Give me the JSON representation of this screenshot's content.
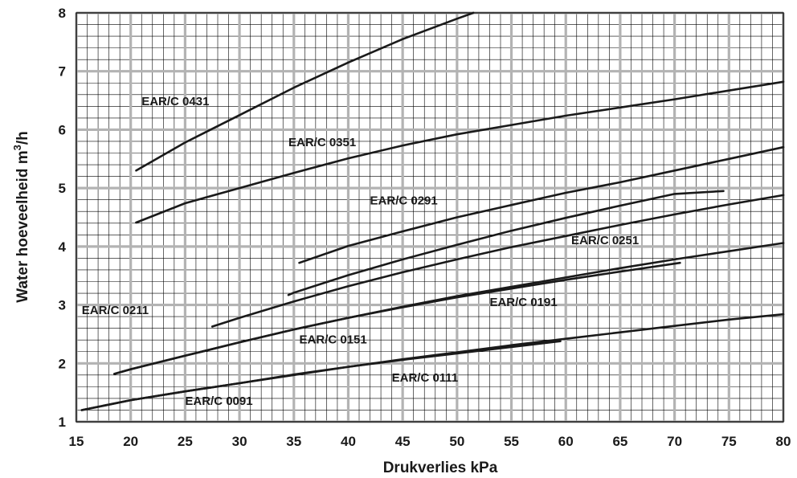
{
  "chart_data": {
    "type": "line",
    "xlabel": "Drukverlies  kPa",
    "ylabel": "Water hoeveelheid m",
    "ylabel_sup": "3",
    "ylabel_unit": "/h",
    "xlim": [
      15,
      80
    ],
    "ylim": [
      1,
      8
    ],
    "xticks": [
      15,
      20,
      25,
      30,
      35,
      40,
      45,
      50,
      55,
      60,
      65,
      70,
      75,
      80
    ],
    "yticks": [
      1,
      2,
      3,
      4,
      5,
      6,
      7,
      8
    ],
    "grid": true,
    "line_color": "#1a1a1a",
    "grid_major_color": "#b3b3b3",
    "grid_minor_color": "#000000",
    "series": [
      {
        "name": "EAR/C 0091",
        "x": [
          15.5,
          20,
          25,
          30,
          35,
          40,
          45,
          50,
          55,
          60,
          65,
          70,
          75,
          80
        ],
        "y": [
          1.2,
          1.37,
          1.52,
          1.66,
          1.81,
          1.94,
          2.07,
          2.19,
          2.31,
          2.42,
          2.53,
          2.64,
          2.75,
          2.84
        ]
      },
      {
        "name": "EAR/C 0111",
        "x": [
          15.5,
          20,
          25,
          30,
          35,
          40,
          45,
          50,
          55,
          59.5
        ],
        "y": [
          1.2,
          1.37,
          1.52,
          1.66,
          1.8,
          1.94,
          2.06,
          2.17,
          2.28,
          2.38
        ]
      },
      {
        "name": "EAR/C 0151",
        "x": [
          18.5,
          20,
          25,
          30,
          35,
          40,
          45,
          50,
          55,
          60,
          65,
          70,
          75,
          80
        ],
        "y": [
          1.82,
          1.9,
          2.13,
          2.36,
          2.58,
          2.78,
          2.97,
          3.15,
          3.31,
          3.47,
          3.63,
          3.78,
          3.92,
          4.06
        ]
      },
      {
        "name": "EAR/C 0191",
        "x": [
          18.5,
          20,
          25,
          30,
          35,
          40,
          45,
          50,
          55,
          60,
          65,
          70.5
        ],
        "y": [
          1.82,
          1.9,
          2.13,
          2.36,
          2.58,
          2.78,
          2.96,
          3.13,
          3.28,
          3.43,
          3.57,
          3.72
        ]
      },
      {
        "name": "EAR/C 0211",
        "x": [
          27.5,
          30,
          35,
          40,
          45,
          50,
          55,
          60,
          65,
          70,
          75,
          80
        ],
        "y": [
          2.63,
          2.78,
          3.06,
          3.32,
          3.56,
          3.78,
          3.99,
          4.18,
          4.37,
          4.55,
          4.72,
          4.88
        ]
      },
      {
        "name": "EAR/C 0251",
        "x": [
          34.5,
          35,
          40,
          45,
          50,
          55,
          60,
          65,
          70,
          74.5
        ],
        "y": [
          3.17,
          3.21,
          3.51,
          3.78,
          4.03,
          4.27,
          4.49,
          4.7,
          4.9,
          4.95
        ]
      },
      {
        "name": "EAR/C 0291",
        "x": [
          35.5,
          40,
          45,
          50,
          55,
          60,
          65,
          70,
          75,
          80
        ],
        "y": [
          3.72,
          4.01,
          4.26,
          4.5,
          4.71,
          4.92,
          5.1,
          5.3,
          5.5,
          5.7
        ]
      },
      {
        "name": "EAR/C 0351",
        "x": [
          20.5,
          25,
          30,
          35,
          40,
          45,
          50,
          55,
          60,
          65,
          70,
          75,
          80
        ],
        "y": [
          4.41,
          4.74,
          5.0,
          5.26,
          5.51,
          5.73,
          5.92,
          6.08,
          6.24,
          6.38,
          6.52,
          6.67,
          6.82
        ]
      },
      {
        "name": "EAR/C 0431",
        "x": [
          20.5,
          25,
          30,
          35,
          40,
          45,
          50,
          51.5
        ],
        "y": [
          5.3,
          5.78,
          6.25,
          6.72,
          7.15,
          7.55,
          7.9,
          8.0
        ]
      }
    ],
    "curve_labels": [
      {
        "text": "EAR/C 0431",
        "x": 21,
        "y": 6.42
      },
      {
        "text": "EAR/C 0351",
        "x": 34.5,
        "y": 5.72
      },
      {
        "text": "EAR/C 0291",
        "x": 42,
        "y": 4.72
      },
      {
        "text": "EAR/C 0251",
        "x": 60.5,
        "y": 4.04
      },
      {
        "text": "EAR/C 0211",
        "x": 15.5,
        "y": 2.84
      },
      {
        "text": "EAR/C 0191",
        "x": 53,
        "y": 2.98
      },
      {
        "text": "EAR/C 0151",
        "x": 35.5,
        "y": 2.34
      },
      {
        "text": "EAR/C 0111",
        "x": 44,
        "y": 1.69
      },
      {
        "text": "EAR/C 0091",
        "x": 25,
        "y": 1.29
      }
    ]
  }
}
